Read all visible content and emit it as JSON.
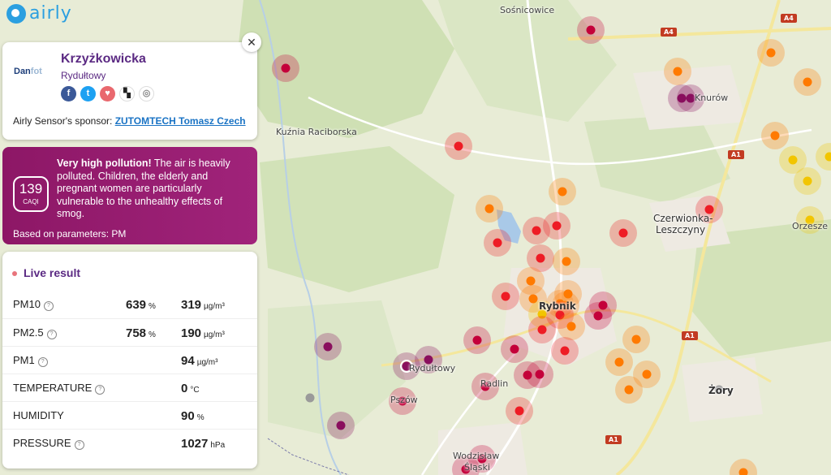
{
  "app": {
    "logo_text": "airly"
  },
  "map": {
    "labels": [
      {
        "id": "kuznia",
        "text": "Kuźnia Raciborska"
      },
      {
        "id": "czerwionka1",
        "text": "Czerwionka-"
      },
      {
        "id": "czerwionka2",
        "text": "Leszczyny"
      },
      {
        "id": "orzesze",
        "text": "Orzesze"
      },
      {
        "id": "rybnik",
        "text": "Rybnik"
      },
      {
        "id": "rydultowy",
        "text": "Rydułtowy"
      },
      {
        "id": "radlin",
        "text": "Radlin"
      },
      {
        "id": "pszow",
        "text": "Pszów"
      },
      {
        "id": "zory",
        "text": "Żory"
      },
      {
        "id": "wodzislaw1",
        "text": "Wodzisław"
      },
      {
        "id": "wodzislaw2",
        "text": "Śląski"
      },
      {
        "id": "knurow",
        "text": "Knurów"
      },
      {
        "id": "sosnicowice",
        "text": "Sośnicowice"
      }
    ],
    "road_badges": [
      "A4",
      "A4",
      "A1",
      "A1",
      "A1"
    ],
    "sensor_colors": {
      "purple": "#8a0f5e",
      "crimson": "#c4003a",
      "red": "#ee1c25",
      "orange": "#ff7a00",
      "yellow": "#f2c500",
      "gray": "#9a9a9a"
    }
  },
  "station": {
    "close_symbol": "✕",
    "sponsor_logo": "Dan",
    "sponsor_logo_light": "fot",
    "name": "Krzyżkowicka",
    "city": "Rydułtowy",
    "share": {
      "facebook": "f",
      "twitter": "t",
      "airly": "♥",
      "qr": "▚",
      "locate": "◎"
    },
    "sponsor_prefix": "Airly Sensor's sponsor:",
    "sponsor_name": "ZUTOMTECH Tomasz Czech"
  },
  "alert": {
    "caqi_value": "139",
    "caqi_unit": "CAQI",
    "headline": "Very high pollution!",
    "message": "The air is heavily polluted. Children, the elderly and pregnant women are particularly vulnerable to the unhealthy effects of smog.",
    "params": "Based on parameters: PM",
    "color": "#8d1766"
  },
  "live": {
    "title": "Live result",
    "rows": [
      {
        "name": "PM10",
        "pct": "639",
        "pct_unit": "%",
        "value": "319",
        "unit": "µg/m³"
      },
      {
        "name": "PM2.5",
        "pct": "758",
        "pct_unit": "%",
        "value": "190",
        "unit": "µg/m³"
      },
      {
        "name": "PM1",
        "pct": "",
        "pct_unit": "",
        "value": "94",
        "unit": "µg/m³"
      },
      {
        "name": "TEMPERATURE",
        "pct": "",
        "pct_unit": "",
        "value": "0",
        "unit": "°C"
      },
      {
        "name": "HUMIDITY",
        "pct": "",
        "pct_unit": "",
        "value": "90",
        "unit": "%"
      },
      {
        "name": "PRESSURE",
        "pct": "",
        "pct_unit": "",
        "value": "1027",
        "unit": "hPa"
      }
    ]
  }
}
